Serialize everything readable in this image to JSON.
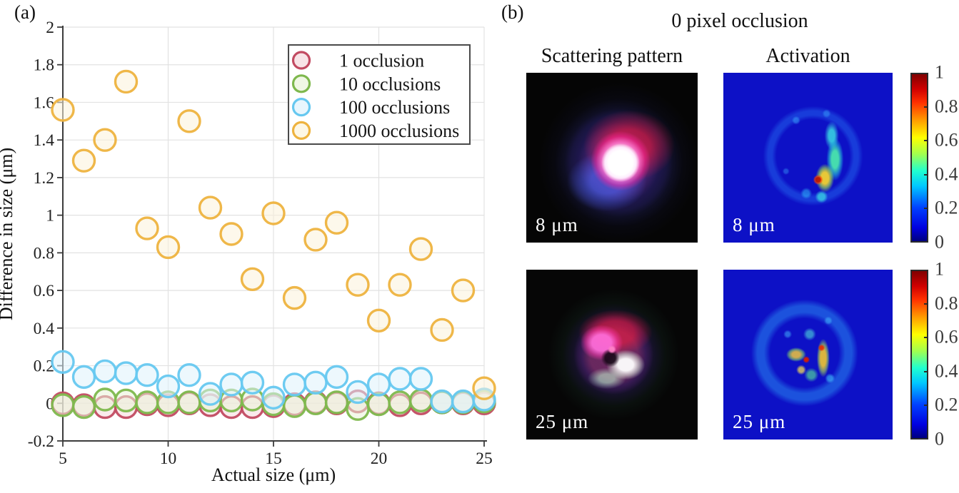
{
  "figure": {
    "panel_a_label": "(a)",
    "panel_b_label": "(b)"
  },
  "chart_data": {
    "type": "scatter",
    "title": "",
    "xlabel": "Actual size (μm)",
    "ylabel": "Difference in size (μm)",
    "xlim": [
      5,
      25
    ],
    "ylim": [
      -0.2,
      2
    ],
    "xticks": [
      5,
      10,
      15,
      20,
      25
    ],
    "yticks": [
      -0.2,
      0,
      0.2,
      0.4,
      0.6,
      0.8,
      1,
      1.2,
      1.4,
      1.6,
      1.8,
      2
    ],
    "grid": true,
    "legend_position": "top-right",
    "x": [
      5,
      6,
      7,
      8,
      9,
      10,
      11,
      12,
      13,
      14,
      15,
      16,
      17,
      18,
      19,
      20,
      21,
      22,
      23,
      24,
      25
    ],
    "series": [
      {
        "name": "1 occlusion",
        "edge_color": "#c24b62",
        "fill_color": "#f5d8dd",
        "values": [
          0.0,
          -0.01,
          -0.02,
          -0.02,
          -0.005,
          -0.01,
          0.0,
          -0.01,
          -0.02,
          -0.02,
          -0.015,
          -0.005,
          0.005,
          0.0,
          0.01,
          0.0,
          -0.01,
          0.0,
          0.005,
          0.0,
          0.0
        ]
      },
      {
        "name": "10 occlusions",
        "edge_color": "#7eb84d",
        "fill_color": "#e9f3d9",
        "values": [
          -0.01,
          -0.02,
          0.02,
          0.015,
          0.005,
          0.005,
          0.005,
          0.015,
          0.015,
          0.02,
          -0.005,
          -0.015,
          0.0,
          0.005,
          -0.03,
          -0.005,
          0.005,
          0.015,
          0.005,
          0.005,
          0.01
        ]
      },
      {
        "name": "100 occlusions",
        "edge_color": "#66c8f0",
        "fill_color": "#def2fc",
        "values": [
          0.22,
          0.14,
          0.17,
          0.16,
          0.15,
          0.09,
          0.15,
          0.05,
          0.1,
          0.11,
          0.03,
          0.1,
          0.11,
          0.14,
          0.06,
          0.1,
          0.13,
          0.13,
          0.01,
          0.01,
          0.02
        ]
      },
      {
        "name": "1000 occlusions",
        "edge_color": "#eeb33f",
        "fill_color": "#fcf3da",
        "values": [
          1.56,
          1.29,
          1.4,
          1.71,
          0.93,
          0.83,
          1.5,
          1.04,
          0.9,
          0.66,
          1.01,
          0.56,
          0.87,
          0.96,
          0.63,
          0.44,
          0.63,
          0.82,
          0.39,
          0.6,
          0.08
        ]
      }
    ]
  },
  "panel_b": {
    "title": "0 pixel occlusion",
    "columns": [
      "Scattering pattern",
      "Activation"
    ],
    "rows": [
      {
        "size_label": "8 μm"
      },
      {
        "size_label": "25 μm"
      }
    ],
    "colorbar": {
      "min": 0,
      "max": 1,
      "ticks": [
        "1",
        "0.8",
        "0.6",
        "0.4",
        "0.2",
        "0"
      ]
    }
  }
}
